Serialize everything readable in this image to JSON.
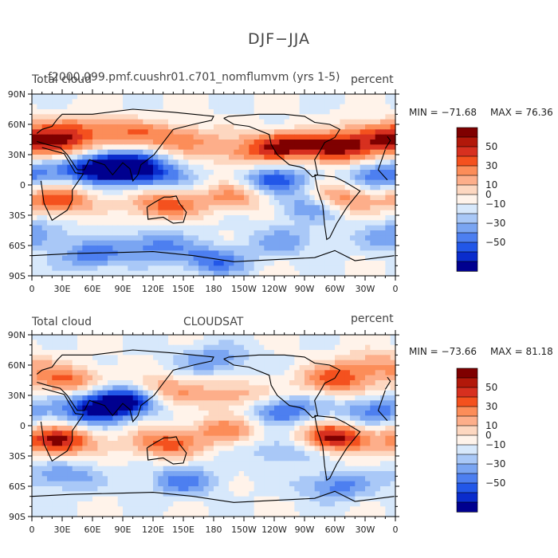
{
  "title": "DJF−JJA",
  "panels": [
    {
      "id": "model",
      "left_label": "Total cloud",
      "center_label": "f2000.099.pmf.cuushr01.c701_nomflumvm (yrs 1-5)",
      "right_label": "percent",
      "min_label": "MIN = −71.68",
      "max_label": "MAX =  76.36"
    },
    {
      "id": "obs",
      "left_label": "Total cloud",
      "center_label": "CLOUDSAT",
      "right_label": "percent",
      "min_label": "MIN = −73.66",
      "max_label": "MAX =  81.18"
    }
  ],
  "lat_labels": [
    "90N",
    "60N",
    "30N",
    "0",
    "30S",
    "60S",
    "90S"
  ],
  "lon_labels": [
    "0",
    "30E",
    "60E",
    "90E",
    "120E",
    "150E",
    "180",
    "150W",
    "120W",
    "90W",
    "60W",
    "30W",
    "0"
  ],
  "colorbar": {
    "levels": [
      -60,
      -50,
      -40,
      -30,
      -20,
      -10,
      0,
      10,
      20,
      30,
      40,
      50,
      60
    ],
    "tick_labels": [
      "50",
      "30",
      "10",
      "0",
      "−10",
      "−30",
      "−50"
    ],
    "colors": [
      "#7f0000",
      "#b2180a",
      "#d7301f",
      "#f4511e",
      "#fc8d59",
      "#fdae8a",
      "#fdd7c0",
      "#fff3ea",
      "#d7e8fb",
      "#a9c8f7",
      "#7aa5f2",
      "#4d7ff0",
      "#2257e8",
      "#0a2ccc",
      "#00008f"
    ]
  },
  "map_features": {
    "model_pattern": [
      {
        "lon": 20,
        "lat": 40,
        "v": 55
      },
      {
        "lon": 50,
        "lat": 55,
        "v": 35
      },
      {
        "lon": 100,
        "lat": 50,
        "v": 30
      },
      {
        "lon": 150,
        "lat": 45,
        "v": 35
      },
      {
        "lon": 210,
        "lat": 30,
        "v": 30
      },
      {
        "lon": 250,
        "lat": 40,
        "v": 55
      },
      {
        "lon": 300,
        "lat": 35,
        "v": 60
      },
      {
        "lon": 340,
        "lat": 50,
        "v": 45
      },
      {
        "lon": 25,
        "lat": -15,
        "v": 50
      },
      {
        "lon": 130,
        "lat": -20,
        "v": 45
      },
      {
        "lon": 200,
        "lat": -12,
        "v": 35
      },
      {
        "lon": 300,
        "lat": -15,
        "v": 55
      },
      {
        "lon": 60,
        "lat": 15,
        "v": -50
      },
      {
        "lon": 90,
        "lat": 20,
        "v": -60
      },
      {
        "lon": 120,
        "lat": 10,
        "v": -40
      },
      {
        "lon": 240,
        "lat": 5,
        "v": -45
      },
      {
        "lon": 280,
        "lat": -20,
        "v": -50
      },
      {
        "lon": 350,
        "lat": 10,
        "v": -40
      },
      {
        "lon": 0,
        "lat": -50,
        "v": -30
      },
      {
        "lon": 120,
        "lat": -60,
        "v": -35
      },
      {
        "lon": 250,
        "lat": -55,
        "v": -25
      },
      {
        "lon": 180,
        "lat": -75,
        "v": -40
      },
      {
        "lon": 60,
        "lat": -70,
        "v": -35
      }
    ],
    "obs_pattern": [
      {
        "lon": 25,
        "lat": -15,
        "v": 65
      },
      {
        "lon": 130,
        "lat": -18,
        "v": 45
      },
      {
        "lon": 300,
        "lat": -12,
        "v": 65
      },
      {
        "lon": 190,
        "lat": -5,
        "v": 35
      },
      {
        "lon": 35,
        "lat": 45,
        "v": 40
      },
      {
        "lon": 130,
        "lat": 35,
        "v": 35
      },
      {
        "lon": 200,
        "lat": 30,
        "v": 30
      },
      {
        "lon": 300,
        "lat": 45,
        "v": 45
      },
      {
        "lon": 340,
        "lat": 60,
        "v": 30
      },
      {
        "lon": 90,
        "lat": 25,
        "v": -70
      },
      {
        "lon": 60,
        "lat": 15,
        "v": -50
      },
      {
        "lon": 250,
        "lat": 15,
        "v": -40
      },
      {
        "lon": 340,
        "lat": 15,
        "v": -35
      },
      {
        "lon": 180,
        "lat": 65,
        "v": -30
      },
      {
        "lon": 30,
        "lat": -50,
        "v": -30
      },
      {
        "lon": 150,
        "lat": -55,
        "v": -35
      },
      {
        "lon": 300,
        "lat": -60,
        "v": -35
      },
      {
        "lon": 250,
        "lat": -25,
        "v": -25
      }
    ]
  }
}
